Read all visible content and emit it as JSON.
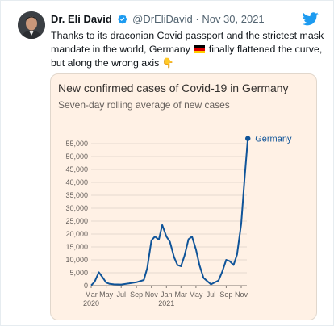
{
  "tweet": {
    "display_name": "Dr. Eli David",
    "handle": "@DrEliDavid",
    "separator": "·",
    "date": "Nov 30, 2021",
    "text_before_flag": "Thanks to its draconian Covid passport and the strictest mask mandate in the world, Germany",
    "text_after_flag": "finally flattened the curve, but along the wrong axis",
    "emoji_point": "👇",
    "icons": {
      "verified": "verified-badge-icon",
      "logo": "twitter-bird-icon",
      "flag": "german-flag-icon"
    },
    "colors": {
      "accent": "#1d9bf0",
      "text": "#0f1419",
      "muted": "#536471"
    }
  },
  "chart_data": {
    "type": "line",
    "title": "New confirmed cases of Covid-19 in Germany",
    "subtitle": "Seven-day rolling average of new cases",
    "xlabel": "",
    "ylabel": "",
    "ylim": [
      0,
      55000
    ],
    "yticks": [
      "0",
      "5,000",
      "10,000",
      "15,000",
      "20,000",
      "25,000",
      "30,000",
      "35,000",
      "40,000",
      "45,000",
      "50,000",
      "55,000"
    ],
    "xticks": [
      {
        "label": "Mar",
        "sub": "2020"
      },
      {
        "label": "May",
        "sub": ""
      },
      {
        "label": "Jul",
        "sub": ""
      },
      {
        "label": "Sep",
        "sub": ""
      },
      {
        "label": "Nov",
        "sub": ""
      },
      {
        "label": "Jan",
        "sub": "2021"
      },
      {
        "label": "Mar",
        "sub": ""
      },
      {
        "label": "May",
        "sub": ""
      },
      {
        "label": "Jul",
        "sub": ""
      },
      {
        "label": "Sep",
        "sub": ""
      },
      {
        "label": "Nov",
        "sub": ""
      }
    ],
    "grid": true,
    "background": "#fff1e5",
    "series": [
      {
        "name": "Germany",
        "color": "#0f5499",
        "x": [
          "2020-03-01",
          "2020-03-15",
          "2020-04-01",
          "2020-04-15",
          "2020-05-01",
          "2020-05-15",
          "2020-06-01",
          "2020-07-01",
          "2020-08-01",
          "2020-09-01",
          "2020-10-01",
          "2020-10-15",
          "2020-11-01",
          "2020-11-15",
          "2020-12-01",
          "2020-12-15",
          "2021-01-01",
          "2021-01-15",
          "2021-02-01",
          "2021-02-15",
          "2021-03-01",
          "2021-03-15",
          "2021-04-01",
          "2021-04-15",
          "2021-05-01",
          "2021-05-15",
          "2021-06-01",
          "2021-07-01",
          "2021-08-01",
          "2021-08-15",
          "2021-09-01",
          "2021-09-15",
          "2021-10-01",
          "2021-10-15",
          "2021-11-01",
          "2021-11-15",
          "2021-11-28"
        ],
        "values": [
          100,
          1500,
          5200,
          3400,
          1200,
          700,
          500,
          450,
          850,
          1300,
          2200,
          6800,
          17500,
          19000,
          17800,
          23500,
          19000,
          17000,
          11000,
          8000,
          7500,
          11500,
          18000,
          19000,
          14000,
          8000,
          3000,
          500,
          2000,
          5200,
          10000,
          9500,
          8000,
          12000,
          24000,
          42000,
          57000
        ]
      }
    ]
  }
}
